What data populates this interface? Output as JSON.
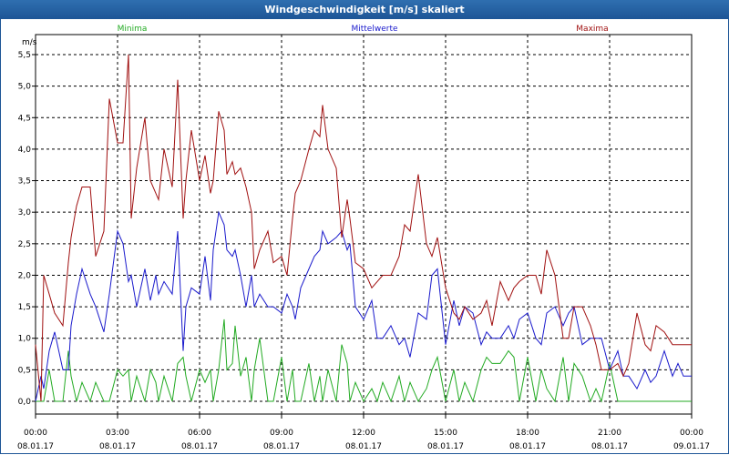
{
  "window": {
    "title": "Windgeschwindigkeit [m/s] skaliert"
  },
  "colors": {
    "minima": "#22aa22",
    "mittel": "#1a1acc",
    "maxima": "#a01010",
    "grid": "#000000",
    "axis": "#000000"
  },
  "chart_data": {
    "type": "line",
    "title": "Windgeschwindigkeit [m/s] skaliert",
    "ylabel": "m/s",
    "ylim": [
      0,
      5.5
    ],
    "yticks": [
      "0,0",
      "0,5",
      "1,0",
      "1,5",
      "2,0",
      "2,5",
      "3,0",
      "3,5",
      "4,0",
      "4,5",
      "5,0",
      "5,5"
    ],
    "xlim": [
      0,
      24
    ],
    "xticks": [
      {
        "time": "00:00",
        "date": "08.01.17"
      },
      {
        "time": "03:00",
        "date": "08.01.17"
      },
      {
        "time": "06:00",
        "date": "08.01.17"
      },
      {
        "time": "09:00",
        "date": "08.01.17"
      },
      {
        "time": "12:00",
        "date": "08.01.17"
      },
      {
        "time": "15:00",
        "date": "08.01.17"
      },
      {
        "time": "18:00",
        "date": "08.01.17"
      },
      {
        "time": "21:00",
        "date": "08.01.17"
      },
      {
        "time": "00:00",
        "date": "09.01.17"
      }
    ],
    "grid": true,
    "series": [
      {
        "name": "Minima",
        "key": "minima",
        "x": [
          0.0,
          0.2,
          0.3,
          0.5,
          0.7,
          1.0,
          1.2,
          1.3,
          1.5,
          1.7,
          2.0,
          2.2,
          2.5,
          2.7,
          3.0,
          3.2,
          3.4,
          3.5,
          3.7,
          4.0,
          4.2,
          4.4,
          4.5,
          4.7,
          5.0,
          5.2,
          5.4,
          5.5,
          5.7,
          6.0,
          6.2,
          6.4,
          6.5,
          6.7,
          6.9,
          7.0,
          7.2,
          7.3,
          7.5,
          7.7,
          7.9,
          8.0,
          8.2,
          8.5,
          8.7,
          9.0,
          9.2,
          9.4,
          9.5,
          9.7,
          10.0,
          10.2,
          10.4,
          10.5,
          10.7,
          11.0,
          11.2,
          11.4,
          11.5,
          11.7,
          12.0,
          12.3,
          12.5,
          12.7,
          13.0,
          13.3,
          13.5,
          13.7,
          14.0,
          14.3,
          14.5,
          14.7,
          15.0,
          15.3,
          15.5,
          15.7,
          16.0,
          16.3,
          16.5,
          16.7,
          17.0,
          17.3,
          17.5,
          17.7,
          18.0,
          18.3,
          18.5,
          18.7,
          19.0,
          19.3,
          19.5,
          19.7,
          20.0,
          20.3,
          20.5,
          20.7,
          21.0,
          21.3,
          21.5,
          21.7,
          22.0,
          22.3,
          22.5,
          22.7,
          23.0,
          23.3,
          23.5,
          23.7,
          24.0
        ],
        "y": [
          0.0,
          0.0,
          0.0,
          0.5,
          0.0,
          0.0,
          0.8,
          0.4,
          0.0,
          0.3,
          0.0,
          0.3,
          0.0,
          0.0,
          0.5,
          0.4,
          0.5,
          0.0,
          0.4,
          0.0,
          0.5,
          0.3,
          0.0,
          0.4,
          0.0,
          0.6,
          0.7,
          0.4,
          0.0,
          0.5,
          0.3,
          0.5,
          0.0,
          0.5,
          1.3,
          0.5,
          0.6,
          1.2,
          0.4,
          0.7,
          0.0,
          0.5,
          1.0,
          0.0,
          0.0,
          0.7,
          0.0,
          0.5,
          0.0,
          0.0,
          0.6,
          0.0,
          0.4,
          0.0,
          0.5,
          0.0,
          0.9,
          0.6,
          0.0,
          0.3,
          0.0,
          0.2,
          0.0,
          0.3,
          0.0,
          0.4,
          0.0,
          0.3,
          0.0,
          0.2,
          0.5,
          0.7,
          0.0,
          0.5,
          0.0,
          0.3,
          0.0,
          0.5,
          0.7,
          0.6,
          0.6,
          0.8,
          0.7,
          0.0,
          0.7,
          0.0,
          0.5,
          0.2,
          0.0,
          0.7,
          0.0,
          0.6,
          0.4,
          0.0,
          0.2,
          0.0,
          0.6,
          0.0,
          0.0,
          0.0,
          0.0,
          0.0,
          0.0,
          0.0,
          0.0,
          0.0,
          0.0,
          0.0,
          0.0
        ]
      },
      {
        "name": "Mittelwerte",
        "key": "mittel",
        "x": [
          0.0,
          0.2,
          0.3,
          0.5,
          0.7,
          1.0,
          1.2,
          1.3,
          1.5,
          1.7,
          2.0,
          2.2,
          2.5,
          2.7,
          3.0,
          3.2,
          3.4,
          3.5,
          3.7,
          4.0,
          4.2,
          4.4,
          4.5,
          4.7,
          5.0,
          5.2,
          5.4,
          5.5,
          5.7,
          6.0,
          6.2,
          6.4,
          6.5,
          6.7,
          6.9,
          7.0,
          7.2,
          7.3,
          7.5,
          7.7,
          7.9,
          8.0,
          8.2,
          8.5,
          8.7,
          9.0,
          9.2,
          9.4,
          9.5,
          9.7,
          10.0,
          10.2,
          10.4,
          10.5,
          10.7,
          11.0,
          11.2,
          11.4,
          11.5,
          11.7,
          12.0,
          12.3,
          12.5,
          12.7,
          13.0,
          13.3,
          13.5,
          13.7,
          14.0,
          14.3,
          14.5,
          14.7,
          15.0,
          15.3,
          15.5,
          15.7,
          16.0,
          16.3,
          16.5,
          16.7,
          17.0,
          17.3,
          17.5,
          17.7,
          18.0,
          18.3,
          18.5,
          18.7,
          19.0,
          19.3,
          19.5,
          19.7,
          20.0,
          20.3,
          20.5,
          20.7,
          21.0,
          21.3,
          21.5,
          21.7,
          22.0,
          22.3,
          22.5,
          22.7,
          23.0,
          23.3,
          23.5,
          23.7,
          24.0
        ],
        "y": [
          0.0,
          0.4,
          0.2,
          0.8,
          1.1,
          0.5,
          0.5,
          1.2,
          1.7,
          2.1,
          1.7,
          1.5,
          1.1,
          1.7,
          2.7,
          2.5,
          1.9,
          2.0,
          1.5,
          2.1,
          1.6,
          2.0,
          1.7,
          1.9,
          1.7,
          2.7,
          0.8,
          1.5,
          1.8,
          1.7,
          2.3,
          1.6,
          2.4,
          3.0,
          2.8,
          2.4,
          2.3,
          2.4,
          2.0,
          1.5,
          2.0,
          1.5,
          1.7,
          1.5,
          1.5,
          1.4,
          1.7,
          1.5,
          1.3,
          1.8,
          2.1,
          2.3,
          2.4,
          2.7,
          2.5,
          2.6,
          2.7,
          2.4,
          2.5,
          1.5,
          1.3,
          1.6,
          1.0,
          1.0,
          1.2,
          0.9,
          1.0,
          0.7,
          1.4,
          1.3,
          2.0,
          2.1,
          0.9,
          1.6,
          1.2,
          1.5,
          1.4,
          0.9,
          1.1,
          1.0,
          1.0,
          1.2,
          1.0,
          1.3,
          1.4,
          1.0,
          0.9,
          1.4,
          1.5,
          1.2,
          1.4,
          1.5,
          0.9,
          1.0,
          1.0,
          1.0,
          0.5,
          0.8,
          0.4,
          0.4,
          0.2,
          0.5,
          0.3,
          0.4,
          0.8,
          0.4,
          0.6,
          0.4,
          0.4
        ]
      },
      {
        "name": "Maxima",
        "key": "maxima",
        "x": [
          0.0,
          0.2,
          0.3,
          0.5,
          0.7,
          1.0,
          1.2,
          1.3,
          1.5,
          1.7,
          2.0,
          2.2,
          2.5,
          2.7,
          3.0,
          3.2,
          3.4,
          3.5,
          3.7,
          4.0,
          4.2,
          4.4,
          4.5,
          4.7,
          5.0,
          5.2,
          5.4,
          5.5,
          5.7,
          6.0,
          6.2,
          6.4,
          6.5,
          6.7,
          6.9,
          7.0,
          7.2,
          7.3,
          7.5,
          7.7,
          7.9,
          8.0,
          8.2,
          8.5,
          8.7,
          9.0,
          9.2,
          9.4,
          9.5,
          9.7,
          10.0,
          10.2,
          10.4,
          10.5,
          10.7,
          11.0,
          11.2,
          11.4,
          11.5,
          11.7,
          12.0,
          12.3,
          12.5,
          12.7,
          13.0,
          13.3,
          13.5,
          13.7,
          14.0,
          14.3,
          14.5,
          14.7,
          15.0,
          15.3,
          15.5,
          15.7,
          16.0,
          16.3,
          16.5,
          16.7,
          17.0,
          17.3,
          17.5,
          17.7,
          18.0,
          18.3,
          18.5,
          18.7,
          19.0,
          19.3,
          19.5,
          19.7,
          20.0,
          20.3,
          20.5,
          20.7,
          21.0,
          21.3,
          21.5,
          21.7,
          22.0,
          22.3,
          22.5,
          22.7,
          23.0,
          23.3,
          23.5,
          23.7,
          24.0
        ],
        "y": [
          0.9,
          0.0,
          2.0,
          1.7,
          1.4,
          1.2,
          2.2,
          2.6,
          3.1,
          3.4,
          3.4,
          2.3,
          2.7,
          4.8,
          4.1,
          4.1,
          5.5,
          2.9,
          3.7,
          4.5,
          3.5,
          3.3,
          3.2,
          4.0,
          3.4,
          5.1,
          2.9,
          3.5,
          4.3,
          3.5,
          3.9,
          3.3,
          3.5,
          4.6,
          4.3,
          3.6,
          3.8,
          3.6,
          3.7,
          3.4,
          3.0,
          2.1,
          2.4,
          2.7,
          2.2,
          2.3,
          2.0,
          2.9,
          3.3,
          3.5,
          4.0,
          4.3,
          4.2,
          4.7,
          4.0,
          3.7,
          2.6,
          3.2,
          2.9,
          2.2,
          2.1,
          1.8,
          1.9,
          2.0,
          2.0,
          2.3,
          2.8,
          2.7,
          3.6,
          2.5,
          2.3,
          2.6,
          1.8,
          1.4,
          1.3,
          1.5,
          1.3,
          1.4,
          1.6,
          1.2,
          1.9,
          1.6,
          1.8,
          1.9,
          2.0,
          2.0,
          1.7,
          2.4,
          2.0,
          1.0,
          1.0,
          1.5,
          1.5,
          1.2,
          0.9,
          0.5,
          0.5,
          0.6,
          0.4,
          0.6,
          1.4,
          0.9,
          0.8,
          1.2,
          1.1,
          0.9,
          0.9,
          0.9,
          0.9
        ]
      }
    ]
  }
}
